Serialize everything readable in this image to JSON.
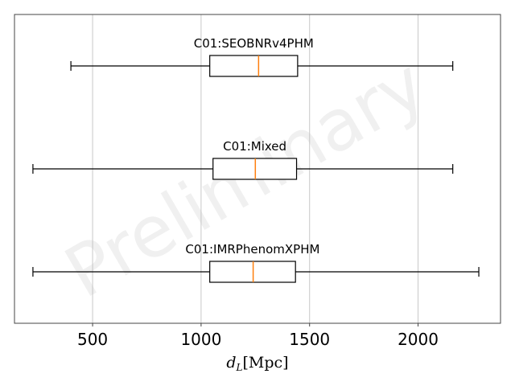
{
  "chart_data": {
    "type": "boxplot",
    "orientation": "horizontal",
    "xlabel": "d_L [Mpc]",
    "xlabel_main": "d",
    "xlabel_sub": "L",
    "xlabel_unit": "[Mpc]",
    "xlim": [
      140,
      2380
    ],
    "xticks": [
      500,
      1000,
      1500,
      2000
    ],
    "grid": "vertical",
    "watermark": "Preliminary",
    "median_color": "#ff7f0e",
    "series": [
      {
        "name": "C01:SEOBNRv4PHM",
        "whisker_low": 400,
        "q1": 1040,
        "median": 1265,
        "q3": 1445,
        "whisker_high": 2160
      },
      {
        "name": "C01:Mixed",
        "whisker_low": 225,
        "q1": 1055,
        "median": 1250,
        "q3": 1440,
        "whisker_high": 2160
      },
      {
        "name": "C01:IMRPhenomXPHM",
        "whisker_low": 225,
        "q1": 1040,
        "median": 1240,
        "q3": 1435,
        "whisker_high": 2280
      }
    ]
  }
}
